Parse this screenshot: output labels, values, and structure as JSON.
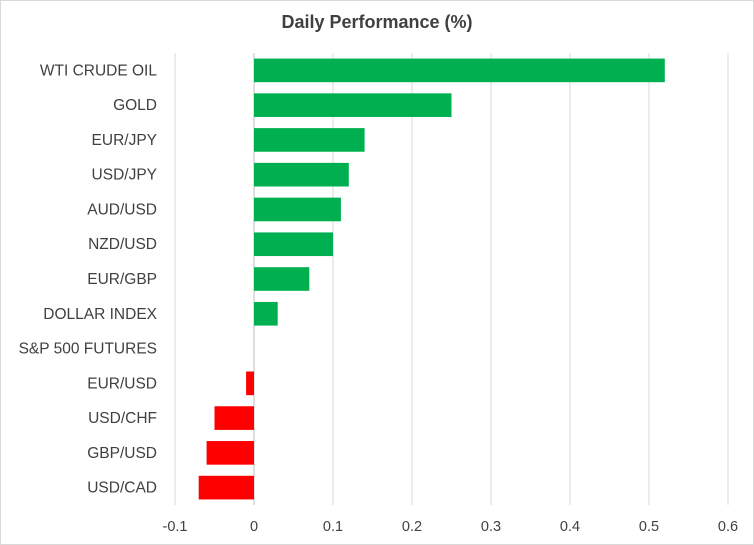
{
  "chart_data": {
    "type": "bar",
    "orientation": "horizontal",
    "title": "Daily Performance (%)",
    "categories": [
      "WTI CRUDE OIL",
      "GOLD",
      "EUR/JPY",
      "USD/JPY",
      "AUD/USD",
      "NZD/USD",
      "EUR/GBP",
      "DOLLAR INDEX",
      "S&P 500 FUTURES",
      "EUR/USD",
      "USD/CHF",
      "GBP/USD",
      "USD/CAD"
    ],
    "values": [
      0.52,
      0.25,
      0.14,
      0.12,
      0.11,
      0.1,
      0.07,
      0.03,
      0.0,
      -0.01,
      -0.05,
      -0.06,
      -0.07
    ],
    "xticks": [
      "-0.1",
      "0",
      "0.1",
      "0.2",
      "0.3",
      "0.4",
      "0.5",
      "0.6"
    ],
    "xlim": [
      -0.1,
      0.6
    ],
    "grid": true,
    "legend": "none",
    "colors": {
      "positive": "#00b050",
      "negative": "#ff0000",
      "grid": "#d9d9d9",
      "axis": "#bfbfbf",
      "text": "#404040"
    }
  }
}
